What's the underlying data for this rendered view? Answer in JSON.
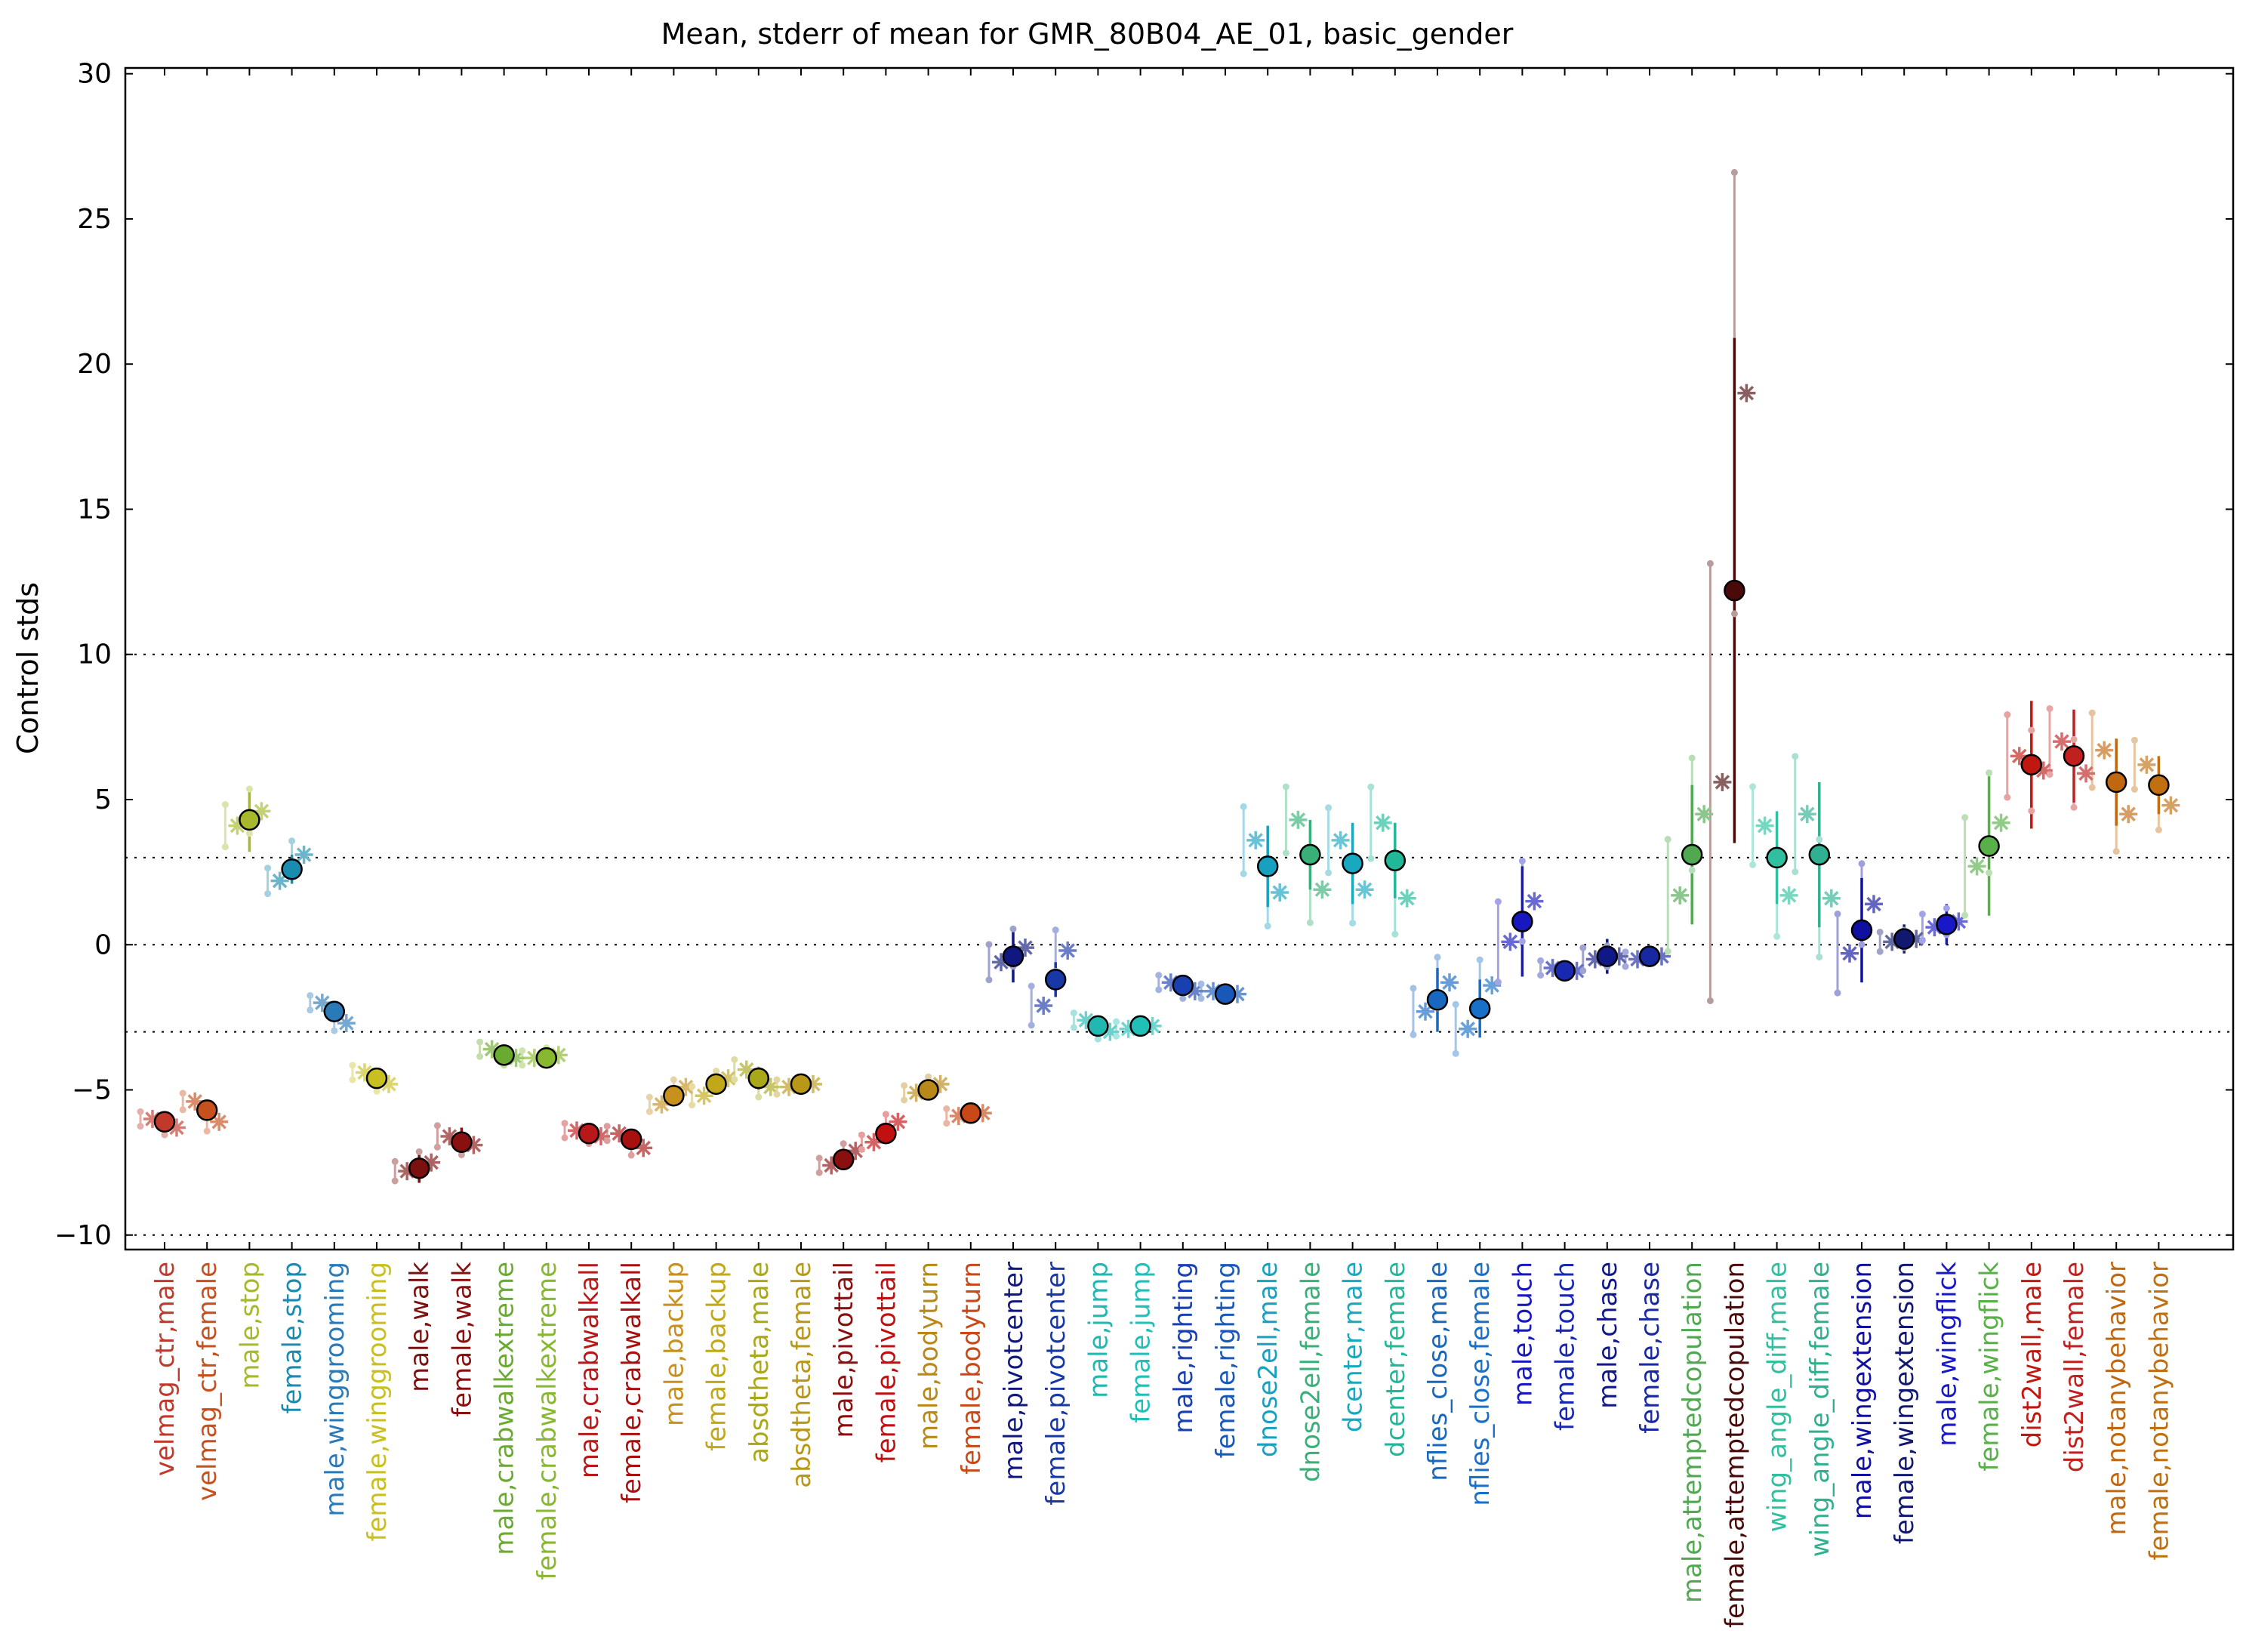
{
  "chart_data": {
    "type": "scatter",
    "title": "Mean, stderr of mean for GMR_80B04_AE_01, basic_gender",
    "ylabel": "Control stds",
    "xlabel": "",
    "ylim": [
      -10.5,
      30.2
    ],
    "yticks": [
      -10,
      -5,
      0,
      5,
      10,
      15,
      20,
      25,
      30
    ],
    "reference_lines": [
      -10,
      -3,
      0,
      3,
      10
    ],
    "grid": false,
    "categories": [
      "velmag_ctr,male",
      "velmag_ctr,female",
      "male,stop",
      "female,stop",
      "male,winggrooming",
      "female,winggrooming",
      "male,walk",
      "female,walk",
      "male,crabwalkextreme",
      "female,crabwalkextreme",
      "male,crabwalkall",
      "female,crabwalkall",
      "male,backup",
      "female,backup",
      "absdtheta,male",
      "absdtheta,female",
      "male,pivottail",
      "female,pivottail",
      "male,bodyturn",
      "female,bodyturn",
      "male,pivotcenter",
      "female,pivotcenter",
      "male,jump",
      "female,jump",
      "male,righting",
      "female,righting",
      "dnose2ell,male",
      "dnose2ell,female",
      "dcenter,male",
      "dcenter,female",
      "nflies_close,male",
      "nflies_close,female",
      "male,touch",
      "female,touch",
      "male,chase",
      "female,chase",
      "male,attemptedcopulation",
      "female,attemptedcopulation",
      "wing_angle_diff,male",
      "wing_angle_diff,female",
      "male,wingextension",
      "female,wingextension",
      "male,wingflick",
      "female,wingflick",
      "dist2wall,male",
      "dist2wall,female",
      "male,notanybehavior",
      "female,notanybehavior"
    ],
    "colors": [
      "#c0392b",
      "#c8501c",
      "#a8b82c",
      "#1a8cb0",
      "#2a7ab8",
      "#c8c020",
      "#7a1010",
      "#8a1010",
      "#6aaa30",
      "#88b830",
      "#b81818",
      "#a81010",
      "#c8901c",
      "#c0a818",
      "#a8a818",
      "#b89818",
      "#8a1010",
      "#c01010",
      "#b88818",
      "#c84818",
      "#101880",
      "#1838a8",
      "#20b8b0",
      "#20c0b8",
      "#1840b0",
      "#1858b8",
      "#18a0c0",
      "#38b078",
      "#18a8c0",
      "#20b898",
      "#1868c0",
      "#1870c8",
      "#1818c0",
      "#1828b0",
      "#101888",
      "#1828a0",
      "#50a850",
      "#4a0a0a",
      "#30c0a0",
      "#30b090",
      "#1010a0",
      "#101870",
      "#1818c8",
      "#58b048",
      "#c01810",
      "#c02020",
      "#c06810",
      "#c07010"
    ],
    "series": [
      {
        "name": "mean",
        "values": [
          -6.1,
          -5.7,
          4.3,
          2.6,
          -2.3,
          -4.6,
          -7.7,
          -6.8,
          -3.8,
          -3.9,
          -6.5,
          -6.7,
          -5.2,
          -4.8,
          -4.6,
          -4.8,
          -7.4,
          -6.5,
          -5.0,
          -5.8,
          -0.4,
          -1.2,
          -2.8,
          -2.8,
          -1.4,
          -1.7,
          2.7,
          3.1,
          2.8,
          2.9,
          -1.9,
          -2.2,
          0.8,
          -0.9,
          -0.4,
          -0.4,
          3.1,
          12.2,
          3.0,
          3.1,
          0.5,
          0.2,
          0.7,
          3.4,
          6.2,
          6.5,
          5.6,
          5.5
        ],
        "stderr": [
          0.3,
          0.3,
          1.1,
          0.5,
          0.2,
          0.3,
          0.5,
          0.5,
          0.1,
          0.1,
          0.2,
          0.2,
          0.2,
          0.3,
          0.4,
          0.3,
          0.2,
          0.2,
          0.2,
          0.3,
          0.9,
          0.6,
          0.1,
          0.1,
          0.1,
          0.1,
          1.4,
          1.2,
          1.4,
          1.3,
          1.1,
          1.0,
          1.9,
          0.3,
          0.6,
          0.1,
          2.4,
          8.7,
          1.6,
          2.5,
          1.8,
          0.5,
          0.7,
          2.4,
          2.2,
          1.6,
          1.5,
          1.0
        ]
      },
      {
        "name": "experiments",
        "values": [
          [
            -6.0,
            -6.3
          ],
          [
            -5.4,
            -6.1
          ],
          [
            4.1,
            4.6
          ],
          [
            2.2,
            3.1
          ],
          [
            -2.0,
            -2.7
          ],
          [
            -4.4,
            -4.8
          ],
          [
            -7.8,
            -7.5
          ],
          [
            -6.6,
            -6.9
          ],
          [
            -3.6,
            -3.9
          ],
          [
            -3.9,
            -3.8
          ],
          [
            -6.4,
            -6.6
          ],
          [
            -6.5,
            -7.0
          ],
          [
            -5.5,
            -4.9
          ],
          [
            -5.2,
            -4.6
          ],
          [
            -4.3,
            -4.9
          ],
          [
            -4.9,
            -4.8
          ],
          [
            -7.6,
            -7.1
          ],
          [
            -6.8,
            -6.1
          ],
          [
            -5.1,
            -4.8
          ],
          [
            -5.9,
            -5.8
          ],
          [
            -0.6,
            -0.1
          ],
          [
            -2.1,
            -0.2
          ],
          [
            -2.6,
            -3.0
          ],
          [
            -2.9,
            -2.8
          ],
          [
            -1.3,
            -1.6
          ],
          [
            -1.6,
            -1.7
          ],
          [
            3.6,
            1.8
          ],
          [
            4.3,
            1.9
          ],
          [
            3.6,
            1.9
          ],
          [
            4.2,
            1.6
          ],
          [
            -2.3,
            -1.3
          ],
          [
            -2.9,
            -1.4
          ],
          [
            0.1,
            1.5
          ],
          [
            -0.8,
            -0.9
          ],
          [
            -0.5,
            -0.4
          ],
          [
            -0.5,
            -0.4
          ],
          [
            1.7,
            4.5
          ],
          [
            5.6,
            19.0
          ],
          [
            4.1,
            1.7
          ],
          [
            4.5,
            1.6
          ],
          [
            -0.3,
            1.4
          ],
          [
            0.1,
            0.2
          ],
          [
            0.6,
            0.8
          ],
          [
            2.7,
            4.2
          ],
          [
            6.5,
            6.0
          ],
          [
            7.0,
            5.9
          ],
          [
            6.7,
            4.5
          ],
          [
            6.2,
            4.8
          ]
        ]
      }
    ]
  }
}
